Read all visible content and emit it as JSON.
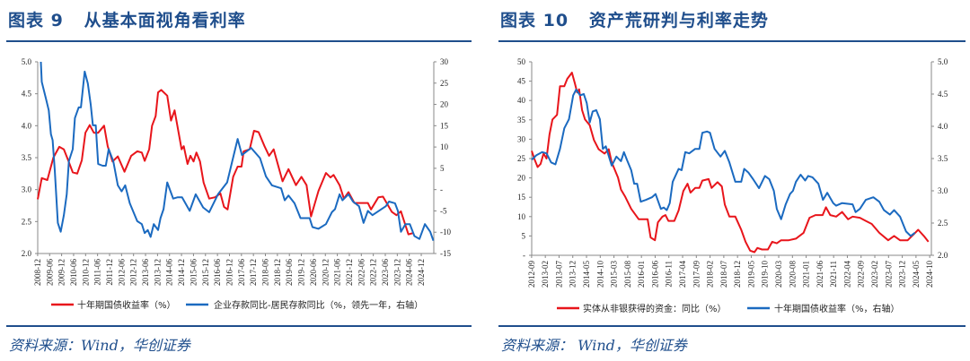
{
  "panels": [
    {
      "title": "图表 9   从基本面视角看利率",
      "source": "资料来源：Wind，华创证券"
    },
    {
      "title": "图表 10   资产荒研判与利率走势",
      "source": "资料来源：  Wind，华创证券"
    }
  ],
  "colors": {
    "title": "#1f4e8c",
    "red": "#e8151b",
    "blue": "#1b6ac0"
  },
  "chart_data": [
    {
      "type": "line",
      "title": "从基本面视角看利率",
      "xlim": [
        2008.92,
        2025.44
      ],
      "ylim_left": [
        2.0,
        5.0
      ],
      "ylim_right": [
        -15,
        30
      ],
      "left_ticks": [
        "2.0",
        "2.5",
        "3.0",
        "3.5",
        "4.0",
        "4.5",
        "5.0"
      ],
      "left_tick_values": [
        2.0,
        2.5,
        3.0,
        3.5,
        4.0,
        4.5,
        5.0
      ],
      "right_ticks": [
        "-15",
        "-10",
        "-5",
        "-",
        "5",
        "10",
        "15",
        "20",
        "25",
        "30"
      ],
      "right_tick_values": [
        -15,
        -10,
        -5,
        0,
        5,
        10,
        15,
        20,
        25,
        30
      ],
      "x_ticks": [
        "2008-12",
        "2009-06",
        "2009-12",
        "2010-06",
        "2010-12",
        "2011-06",
        "2011-12",
        "2012-06",
        "2012-12",
        "2013-06",
        "2013-12",
        "2014-06",
        "2014-12",
        "2015-06",
        "2015-12",
        "2016-06",
        "2016-12",
        "2017-06",
        "2017-12",
        "2018-06",
        "2018-12",
        "2019-06",
        "2019-12",
        "2020-06",
        "2020-12",
        "2021-06",
        "2021-12",
        "2022-06",
        "2022-12",
        "2023-06",
        "2023-12",
        "2024-06",
        "2024-12"
      ],
      "legend_position": "bottom",
      "series": [
        {
          "name": "十年期国债收益率（%）",
          "axis": "left",
          "color": "#e8151b",
          "x": [
            2008.92,
            2009.09,
            2009.32,
            2009.57,
            2009.82,
            2010.01,
            2010.19,
            2010.38,
            2010.57,
            2010.76,
            2010.91,
            2011.09,
            2011.26,
            2011.44,
            2011.69,
            2011.84,
            2012.04,
            2012.26,
            2012.54,
            2012.82,
            2013.07,
            2013.26,
            2013.38,
            2013.57,
            2013.69,
            2013.84,
            2013.94,
            2014.07,
            2014.32,
            2014.48,
            2014.63,
            2014.92,
            2015.01,
            2015.17,
            2015.29,
            2015.42,
            2015.54,
            2015.69,
            2015.84,
            2016.07,
            2016.32,
            2016.54,
            2016.69,
            2016.84,
            2017.07,
            2017.26,
            2017.42,
            2017.51,
            2017.76,
            2017.94,
            2018.13,
            2018.38,
            2018.57,
            2018.76,
            2019.13,
            2019.38,
            2019.69,
            2019.92,
            2020.13,
            2020.32,
            2020.63,
            2020.94,
            2021.13,
            2021.26,
            2021.51,
            2021.69,
            2021.88,
            2022.13,
            2022.69,
            2022.82,
            2023.13,
            2023.32,
            2023.69,
            2023.88,
            2024.07,
            2024.38,
            2024.57
          ],
          "y": [
            2.85,
            3.18,
            3.15,
            3.5,
            3.67,
            3.63,
            3.46,
            3.27,
            3.25,
            3.46,
            3.89,
            4.01,
            3.89,
            3.89,
            4.0,
            3.68,
            3.44,
            3.52,
            3.28,
            3.53,
            3.6,
            3.58,
            3.45,
            3.63,
            4.0,
            4.15,
            4.52,
            4.56,
            4.47,
            4.08,
            4.24,
            3.63,
            3.68,
            3.4,
            3.53,
            3.44,
            3.58,
            3.44,
            3.11,
            2.86,
            2.88,
            2.94,
            2.73,
            2.69,
            3.2,
            3.36,
            3.36,
            3.6,
            3.63,
            3.92,
            3.9,
            3.68,
            3.53,
            3.63,
            3.13,
            3.32,
            3.07,
            3.2,
            3.07,
            2.58,
            2.98,
            3.26,
            3.19,
            3.23,
            3.07,
            2.86,
            2.96,
            2.79,
            2.79,
            2.69,
            2.88,
            2.89,
            2.65,
            2.6,
            2.66,
            2.3,
            2.32
          ]
        },
        {
          "name": "企业存款同比-居民存款同比（%，领先一年，右轴）",
          "axis": "right",
          "color": "#1b6ac0",
          "x": [
            2009.05,
            2009.09,
            2009.26,
            2009.38,
            2009.47,
            2009.54,
            2009.63,
            2009.76,
            2009.88,
            2010.01,
            2010.13,
            2010.22,
            2010.38,
            2010.47,
            2010.63,
            2010.72,
            2010.88,
            2011.01,
            2011.13,
            2011.22,
            2011.34,
            2011.44,
            2011.63,
            2011.76,
            2011.88,
            2012.07,
            2012.26,
            2012.42,
            2012.57,
            2012.76,
            2013.07,
            2013.26,
            2013.38,
            2013.51,
            2013.63,
            2013.76,
            2013.94,
            2014.04,
            2014.17,
            2014.32,
            2014.57,
            2014.76,
            2014.94,
            2015.26,
            2015.51,
            2015.82,
            2016.07,
            2016.44,
            2016.82,
            2017.26,
            2017.44,
            2017.82,
            2018.19,
            2018.44,
            2018.69,
            2019.07,
            2019.22,
            2019.38,
            2019.63,
            2019.88,
            2020.26,
            2020.38,
            2020.63,
            2020.94,
            2021.19,
            2021.32,
            2021.51,
            2021.63,
            2021.88,
            2022.07,
            2022.32,
            2022.51,
            2022.69,
            2022.88,
            2023.44,
            2023.57,
            2023.82,
            2023.94,
            2024.07,
            2024.26,
            2024.44,
            2024.63,
            2024.84,
            2025.07,
            2025.29,
            2025.42
          ],
          "y": [
            30,
            25.3,
            21.4,
            18.6,
            13,
            11.6,
            4.5,
            -7.8,
            -9.9,
            -6,
            -1.1,
            6.7,
            9.5,
            16.8,
            19.3,
            19.3,
            27.7,
            24.9,
            20,
            15.1,
            15.1,
            6,
            5.6,
            5.6,
            9.5,
            6.7,
            1,
            -0.4,
            1,
            -3.2,
            -7.4,
            -8.1,
            -10.2,
            -9.5,
            -11.1,
            -8.1,
            -9.5,
            -6.7,
            -4.6,
            1.7,
            -2.1,
            -1.8,
            -1.8,
            -5,
            -1.1,
            -4.2,
            -5.3,
            -1.1,
            1.7,
            11.9,
            8.1,
            9.8,
            7.4,
            3.1,
            1,
            0.3,
            -2.5,
            -1.4,
            -3.2,
            -6.7,
            -6.7,
            -8.8,
            -9.2,
            -8.1,
            -5.3,
            -4.6,
            -1.1,
            -2.5,
            -1.1,
            -2.8,
            -3.9,
            -7.8,
            -5,
            -6,
            -3.9,
            -2.8,
            -3.2,
            -5,
            -9.9,
            -8.1,
            -8.1,
            -10.9,
            -11.6,
            -8.1,
            -9.9,
            -12
          ]
        }
      ]
    },
    {
      "type": "line",
      "title": "资产荒研判与利率走势",
      "xlim": [
        2012.67,
        2024.8
      ],
      "ylim_left": [
        0,
        50
      ],
      "ylim_right": [
        2.0,
        5.0
      ],
      "left_ticks": [
        "-",
        "5",
        "10",
        "15",
        "20",
        "25",
        "30",
        "35",
        "40",
        "45",
        "50"
      ],
      "left_tick_values": [
        0,
        5,
        10,
        15,
        20,
        25,
        30,
        35,
        40,
        45,
        50
      ],
      "right_ticks": [
        "2.0",
        "2.5",
        "3.0",
        "3.5",
        "4.0",
        "4.5",
        "5.0"
      ],
      "right_tick_values": [
        2.0,
        2.5,
        3.0,
        3.5,
        4.0,
        4.5,
        5.0
      ],
      "x_ticks": [
        "2012-09",
        "2013-02",
        "2013-07",
        "2013-12",
        "2014-05",
        "2014-10",
        "2015-03",
        "2015-08",
        "2016-01",
        "2016-06",
        "2016-11",
        "2017-04",
        "2017-09",
        "2018-02",
        "2018-07",
        "2018-12",
        "2019-05",
        "2019-10",
        "2020-03",
        "2020-08",
        "2021-01",
        "2021-06",
        "2021-11",
        "2022-04",
        "2022-09",
        "2023-02",
        "2023-07",
        "2023-12",
        "2024-05",
        "2024-10"
      ],
      "legend_position": "bottom",
      "series": [
        {
          "name": "实体从非银获得的资金：同比（%）",
          "axis": "left",
          "color": "#e8151b",
          "x": [
            2012.67,
            2012.76,
            2012.85,
            2012.94,
            2013.03,
            2013.12,
            2013.21,
            2013.3,
            2013.44,
            2013.53,
            2013.66,
            2013.75,
            2013.89,
            2013.98,
            2014.05,
            2014.11,
            2014.2,
            2014.29,
            2014.43,
            2014.56,
            2014.7,
            2014.88,
            2015.01,
            2015.1,
            2015.29,
            2015.38,
            2015.51,
            2015.69,
            2015.92,
            2016.19,
            2016.28,
            2016.41,
            2016.5,
            2016.64,
            2016.73,
            2016.82,
            2017.0,
            2017.13,
            2017.27,
            2017.4,
            2017.49,
            2017.63,
            2017.76,
            2017.85,
            2018.04,
            2018.13,
            2018.31,
            2018.44,
            2018.53,
            2018.67,
            2018.85,
            2019.03,
            2019.16,
            2019.3,
            2019.43,
            2019.52,
            2019.66,
            2019.84,
            2019.97,
            2020.11,
            2020.24,
            2020.47,
            2020.69,
            2020.92,
            2021.1,
            2021.28,
            2021.5,
            2021.6,
            2021.73,
            2021.91,
            2022.09,
            2022.27,
            2022.41,
            2022.63,
            2022.81,
            2022.99,
            2023.22,
            2023.49,
            2023.67,
            2023.85,
            2024.08,
            2024.26,
            2024.4,
            2024.57,
            2024.71
          ],
          "y": [
            27,
            24.7,
            22.8,
            23.6,
            26.3,
            25,
            31.2,
            35.1,
            36.3,
            43.7,
            43.7,
            45.6,
            47.2,
            44.4,
            42.1,
            42.9,
            37.5,
            35.1,
            33.6,
            29.8,
            27.4,
            26.3,
            27.4,
            24,
            20.1,
            17,
            15.1,
            12,
            9.3,
            9.3,
            4.6,
            3.9,
            8.5,
            10,
            10.4,
            8.9,
            8.9,
            11.6,
            16.6,
            18.5,
            16.2,
            17.4,
            17.4,
            19.3,
            19.7,
            17.4,
            18.9,
            17.8,
            13.1,
            10,
            10,
            6.6,
            3.5,
            1.2,
            0.8,
            1.9,
            1.5,
            1.5,
            3.5,
            3.1,
            3.9,
            3.9,
            4.3,
            5.8,
            9.7,
            10.4,
            10.4,
            12.4,
            10.4,
            10,
            11.2,
            9.3,
            10,
            9.7,
            8.9,
            8.1,
            5.8,
            3.9,
            5,
            3.9,
            3.9,
            5.4,
            6.6,
            5,
            3.5
          ]
        },
        {
          "name": "十年期国债收益率（%，右轴）",
          "axis": "right",
          "color": "#1b6ac0",
          "x": [
            2012.67,
            2012.81,
            2012.99,
            2013.12,
            2013.26,
            2013.39,
            2013.53,
            2013.66,
            2013.8,
            2013.93,
            2014.02,
            2014.14,
            2014.25,
            2014.34,
            2014.43,
            2014.52,
            2014.63,
            2014.74,
            2014.83,
            2014.92,
            2015.1,
            2015.24,
            2015.38,
            2015.47,
            2015.56,
            2015.69,
            2015.78,
            2015.87,
            2015.98,
            2016.14,
            2016.32,
            2016.43,
            2016.59,
            2016.68,
            2016.77,
            2016.86,
            2016.95,
            2017.13,
            2017.22,
            2017.33,
            2017.45,
            2017.63,
            2017.76,
            2017.85,
            2017.99,
            2018.08,
            2018.22,
            2018.4,
            2018.53,
            2018.67,
            2018.85,
            2019.03,
            2019.12,
            2019.25,
            2019.39,
            2019.57,
            2019.75,
            2019.88,
            2020.02,
            2020.11,
            2020.24,
            2020.38,
            2020.51,
            2020.6,
            2020.69,
            2020.83,
            2020.97,
            2021.06,
            2021.19,
            2021.37,
            2021.51,
            2021.64,
            2021.82,
            2021.91,
            2022.09,
            2022.41,
            2022.5,
            2022.63,
            2022.81,
            2023.04,
            2023.22,
            2023.36,
            2023.54,
            2023.67,
            2023.85,
            2024.03,
            2024.17,
            2024.3
          ],
          "y": [
            3.48,
            3.55,
            3.6,
            3.58,
            3.44,
            3.41,
            3.65,
            3.97,
            4.11,
            4.48,
            4.57,
            4.48,
            4.5,
            4.36,
            4.06,
            4.23,
            4.25,
            4.11,
            3.65,
            3.69,
            3.39,
            3.53,
            3.46,
            3.6,
            3.48,
            3.32,
            3.11,
            3.11,
            2.83,
            2.86,
            2.9,
            2.95,
            2.72,
            2.74,
            2.7,
            2.81,
            3.14,
            3.34,
            3.32,
            3.6,
            3.58,
            3.65,
            3.65,
            3.9,
            3.92,
            3.9,
            3.65,
            3.53,
            3.62,
            3.44,
            3.14,
            3.14,
            3.34,
            3.28,
            3.18,
            3.04,
            3.23,
            3.18,
            3.0,
            2.72,
            2.56,
            2.79,
            2.95,
            3.0,
            3.14,
            3.25,
            3.16,
            3.23,
            3.21,
            3.11,
            2.86,
            2.97,
            2.81,
            2.77,
            2.81,
            2.79,
            2.67,
            2.72,
            2.86,
            2.9,
            2.83,
            2.7,
            2.63,
            2.7,
            2.6,
            2.37,
            2.3,
            2.35
          ]
        }
      ]
    }
  ]
}
